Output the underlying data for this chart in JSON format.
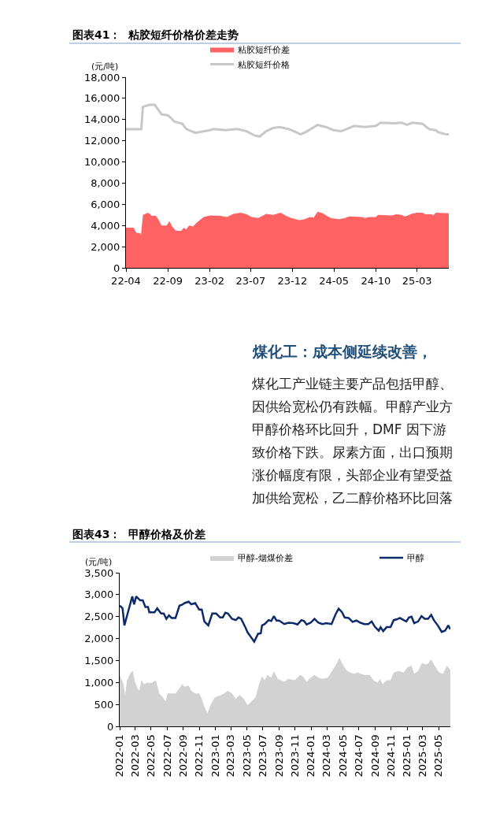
{
  "chart_data": [
    {
      "type": "area",
      "title": "图表41：  粘胶短纤价格价差走势",
      "ylabel": "(元/吨)",
      "xlim": [
        "2022-04-01",
        "2025-06-25"
      ],
      "xticks": [
        {
          "value": "2022-04",
          "label": "22-04"
        },
        {
          "value": "2022-09",
          "label": "22-09"
        },
        {
          "value": "2023-02",
          "label": "23-02"
        },
        {
          "value": "2023-07",
          "label": "23-07"
        },
        {
          "value": "2023-12",
          "label": "23-12"
        },
        {
          "value": "2024-05",
          "label": "24-05"
        },
        {
          "value": "2024-10",
          "label": "24-10"
        },
        {
          "value": "2025-03",
          "label": "25-03"
        }
      ],
      "ylim": [
        0,
        18000
      ],
      "yticks": [
        0,
        {
          "value": 2000,
          "label": "2,000"
        },
        {
          "value": 4000,
          "label": "4,000"
        },
        {
          "value": 6000,
          "label": "6,000"
        },
        {
          "value": 8000,
          "label": "8,000"
        },
        {
          "value": 10000,
          "label": "10,000"
        },
        {
          "value": 12000,
          "label": "12,000"
        },
        {
          "value": 14000,
          "label": "14,000"
        },
        {
          "value": 16000,
          "label": "16,000"
        },
        {
          "value": 18000,
          "label": "18,000"
        }
      ],
      "legend": "top",
      "series": [
        {
          "name": "粘胶短纤价差",
          "type": "area",
          "color": "#ff6262",
          "x": [
            "2022-04-01",
            "2022-04-29",
            "2022-05-09",
            "2022-05-23",
            "2022-05-26",
            "2022-06-02",
            "2022-06-21",
            "2022-07-05",
            "2022-07-20",
            "2022-07-30",
            "2022-08-09",
            "2022-08-28",
            "2022-09-07",
            "2022-09-17",
            "2022-10-01",
            "2022-10-20",
            "2022-10-30",
            "2022-11-07",
            "2022-11-18",
            "2022-12-02",
            "2022-12-17",
            "2023-01-10",
            "2023-02-03",
            "2023-03-12",
            "2023-04-05",
            "2023-04-29",
            "2023-05-27",
            "2023-06-16",
            "2023-07-05",
            "2023-07-29",
            "2023-08-27",
            "2023-09-21",
            "2023-10-19",
            "2023-11-08",
            "2023-11-27",
            "2023-12-26",
            "2024-01-14",
            "2024-02-03",
            "2024-02-17",
            "2024-03-02",
            "2024-03-21",
            "2024-04-05",
            "2024-04-19",
            "2024-05-18",
            "2024-06-11",
            "2024-06-25",
            "2024-08-13",
            "2024-08-22",
            "2024-09-06",
            "2024-10-01",
            "2024-10-09",
            "2024-11-27",
            "2024-12-16",
            "2025-01-04",
            "2025-01-14",
            "2025-01-23",
            "2025-02-08",
            "2025-02-27",
            "2025-03-21",
            "2025-03-31",
            "2025-04-24",
            "2025-04-29",
            "2025-05-08",
            "2025-06-25"
          ],
          "values": [
            3800,
            3800,
            3300,
            3300,
            3100,
            5000,
            5200,
            4900,
            4900,
            4500,
            4000,
            4000,
            4400,
            3900,
            3500,
            3500,
            3800,
            3600,
            4000,
            3900,
            4300,
            4800,
            4950,
            4900,
            4800,
            5100,
            5200,
            5050,
            4800,
            4700,
            5100,
            5000,
            5200,
            4900,
            4700,
            4500,
            4600,
            4800,
            4750,
            5300,
            5150,
            4900,
            4700,
            4600,
            4700,
            4850,
            4800,
            4700,
            4800,
            4800,
            5000,
            4950,
            5050,
            5000,
            4850,
            4900,
            5100,
            5200,
            5200,
            5050,
            5050,
            4950,
            5200,
            5150
          ]
        },
        {
          "name": "粘胶短纤价格",
          "type": "line",
          "color": "#c8c8c8",
          "x": [
            "2022-04-01",
            "2022-05-27",
            "2022-06-02",
            "2022-06-26",
            "2022-07-15",
            "2022-08-09",
            "2022-09-02",
            "2022-09-26",
            "2022-10-24",
            "2022-11-08",
            "2022-12-11",
            "2023-01-14",
            "2023-02-03",
            "2023-02-13",
            "2023-03-31",
            "2023-05-13",
            "2023-06-16",
            "2023-07-15",
            "2023-08-03",
            "2023-08-27",
            "2023-09-21",
            "2023-10-15",
            "2023-11-18",
            "2023-12-07",
            "2023-12-31",
            "2024-01-24",
            "2024-03-02",
            "2024-04-01",
            "2024-04-29",
            "2024-05-27",
            "2024-06-16",
            "2024-07-14",
            "2024-08-22",
            "2024-10-01",
            "2024-10-19",
            "2024-12-06",
            "2025-01-04",
            "2025-01-23",
            "2025-02-12",
            "2025-03-21",
            "2025-04-14",
            "2025-05-08",
            "2025-05-18",
            "2025-06-16",
            "2025-06-25"
          ],
          "values": [
            13100,
            13100,
            15200,
            15400,
            15400,
            14500,
            14400,
            13800,
            13600,
            13100,
            12750,
            12900,
            13000,
            13100,
            13000,
            13100,
            12900,
            12500,
            12400,
            12900,
            13200,
            13300,
            13100,
            12900,
            12600,
            12900,
            13500,
            13300,
            13000,
            12900,
            13100,
            13400,
            13300,
            13400,
            13700,
            13650,
            13700,
            13500,
            13700,
            13600,
            13100,
            13000,
            12800,
            12600,
            12600
          ]
        }
      ]
    },
    {
      "type": "other",
      "title": "煤化工：成本侧延续改善，",
      "annotations": [
        "煤化工产业链主要产品包括甲醇、",
        "因供给宽松仍有跌幅。甲醇产业方",
        "甲醇价格环比回升，DMF 因下游",
        "致价格下跌。尿素方面，出口预期",
        "涨价幅度有限，头部企业有望受益",
        "加供给宽松，乙二醇价格环比回落"
      ]
    },
    {
      "type": "area",
      "title": "图表43：  甲醇价格及价差",
      "ylabel": "(元/吨)",
      "xlim": [
        "2022-01-01",
        "2025-06-15"
      ],
      "xticks": [
        "2022-01",
        "2022-03",
        "2022-05",
        "2022-07",
        "2022-09",
        "2022-11",
        "2023-01",
        "2023-03",
        "2023-05",
        "2023-07",
        "2023-09",
        "2023-11",
        "2024-01",
        "2024-03",
        "2024-05",
        "2024-07",
        "2024-09",
        "2024-11",
        "2025-01",
        "2025-03",
        "2025-05"
      ],
      "ylim": [
        0,
        3500
      ],
      "yticks": [
        0,
        500,
        {
          "value": 1000,
          "label": "1,000"
        },
        {
          "value": 1500,
          "label": "1,500"
        },
        {
          "value": 2000,
          "label": "2,000"
        },
        {
          "value": 2500,
          "label": "2,500"
        },
        {
          "value": 3000,
          "label": "3,000"
        },
        {
          "value": 3500,
          "label": "3,500"
        }
      ],
      "legend": "top",
      "series": [
        {
          "name": "甲醇-烟煤价差",
          "type": "area",
          "color": "#d2d2d2",
          "x": [
            "2022-01-01",
            "2022-01-14",
            "2022-01-22",
            "2022-01-29",
            "2022-02-13",
            "2022-02-20",
            "2022-02-28",
            "2022-03-10",
            "2022-03-17",
            "2022-03-25",
            "2022-04-04",
            "2022-04-14",
            "2022-05-04",
            "2022-05-19",
            "2022-06-01",
            "2022-06-15",
            "2022-06-25",
            "2022-07-03",
            "2022-07-18",
            "2022-08-02",
            "2022-08-17",
            "2022-08-27",
            "2022-09-06",
            "2022-09-21",
            "2022-10-01",
            "2022-10-16",
            "2022-10-31",
            "2022-11-10",
            "2022-11-20",
            "2022-12-02",
            "2022-12-15",
            "2022-12-30",
            "2023-01-14",
            "2023-01-24",
            "2023-02-03",
            "2023-02-18",
            "2023-03-05",
            "2023-03-20",
            "2023-04-04",
            "2023-04-19",
            "2023-05-04",
            "2023-05-19",
            "2023-06-03",
            "2023-06-18",
            "2023-06-28",
            "2023-07-08",
            "2023-07-18",
            "2023-08-02",
            "2023-08-12",
            "2023-08-27",
            "2023-09-21",
            "2023-10-06",
            "2023-10-31",
            "2023-11-20",
            "2023-11-30",
            "2023-12-15",
            "2023-12-30",
            "2024-01-14",
            "2024-01-29",
            "2024-02-13",
            "2024-03-04",
            "2024-03-24",
            "2024-04-08",
            "2024-04-18",
            "2024-04-28",
            "2024-05-13",
            "2024-05-28",
            "2024-06-12",
            "2024-06-27",
            "2024-07-07",
            "2024-07-22",
            "2024-08-11",
            "2024-08-26",
            "2024-09-10",
            "2024-09-20",
            "2024-09-30",
            "2024-10-15",
            "2024-10-30",
            "2024-11-11",
            "2024-11-29",
            "2024-12-19",
            "2025-01-03",
            "2025-01-18",
            "2025-01-28",
            "2025-02-12",
            "2025-02-27",
            "2025-03-14",
            "2025-03-24",
            "2025-04-03",
            "2025-04-13",
            "2025-05-03",
            "2025-05-18",
            "2025-06-02",
            "2025-06-15"
          ],
          "values": [
            1170,
            990,
            720,
            1050,
            1230,
            1260,
            1020,
            870,
            810,
            1050,
            960,
            990,
            990,
            1050,
            750,
            660,
            570,
            750,
            750,
            750,
            870,
            960,
            900,
            930,
            810,
            750,
            750,
            630,
            450,
            300,
            510,
            660,
            690,
            720,
            750,
            810,
            750,
            630,
            720,
            630,
            480,
            570,
            660,
            990,
            1140,
            1050,
            1170,
            1110,
            1260,
            1080,
            1020,
            1080,
            1050,
            1170,
            1140,
            1020,
            1110,
            1170,
            1110,
            1080,
            1110,
            1290,
            1440,
            1560,
            1440,
            1290,
            1230,
            1200,
            1230,
            1200,
            1170,
            1170,
            1050,
            990,
            1080,
            960,
            1050,
            1050,
            1230,
            1260,
            1230,
            1350,
            1380,
            1200,
            1260,
            1440,
            1410,
            1440,
            1530,
            1410,
            1230,
            1200,
            1380,
            1290
          ]
        },
        {
          "name": "甲醇",
          "type": "line",
          "color": "#0d2a6b",
          "x": [
            "2022-01-01",
            "2022-01-12",
            "2022-01-19",
            "2022-02-03",
            "2022-02-18",
            "2022-02-25",
            "2022-03-05",
            "2022-03-20",
            "2022-03-30",
            "2022-04-09",
            "2022-04-19",
            "2022-04-24",
            "2022-05-14",
            "2022-05-24",
            "2022-06-08",
            "2022-06-18",
            "2022-06-28",
            "2022-07-08",
            "2022-07-18",
            "2022-08-02",
            "2022-08-17",
            "2022-08-27",
            "2022-09-06",
            "2022-09-21",
            "2022-10-01",
            "2022-10-16",
            "2022-10-31",
            "2022-11-10",
            "2022-11-20",
            "2022-12-05",
            "2022-12-20",
            "2023-01-04",
            "2023-01-19",
            "2023-01-29",
            "2023-02-08",
            "2023-02-18",
            "2023-03-05",
            "2023-03-20",
            "2023-03-30",
            "2023-04-09",
            "2023-04-24",
            "2023-05-04",
            "2023-05-17",
            "2023-05-29",
            "2023-06-13",
            "2023-06-23",
            "2023-06-28",
            "2023-07-08",
            "2023-07-23",
            "2023-08-02",
            "2023-08-12",
            "2023-08-22",
            "2023-09-01",
            "2023-09-21",
            "2023-10-06",
            "2023-10-26",
            "2023-11-10",
            "2023-11-25",
            "2023-12-05",
            "2023-12-15",
            "2023-12-30",
            "2024-01-14",
            "2024-01-29",
            "2024-02-13",
            "2024-02-28",
            "2024-03-19",
            "2024-04-03",
            "2024-04-15",
            "2024-04-28",
            "2024-05-08",
            "2024-05-23",
            "2024-06-07",
            "2024-06-22",
            "2024-07-07",
            "2024-07-22",
            "2024-08-06",
            "2024-08-19",
            "2024-08-31",
            "2024-09-15",
            "2024-09-22",
            "2024-10-02",
            "2024-10-15",
            "2024-10-30",
            "2024-11-11",
            "2024-11-24",
            "2024-12-04",
            "2024-12-19",
            "2024-12-29",
            "2025-01-08",
            "2025-01-18",
            "2025-01-28",
            "2025-02-12",
            "2025-02-25",
            "2025-03-09",
            "2025-03-22",
            "2025-04-03",
            "2025-04-13",
            "2025-04-28",
            "2025-05-13",
            "2025-05-26",
            "2025-06-07",
            "2025-06-15"
          ],
          "values": [
            2750,
            2690,
            2300,
            2630,
            2960,
            2780,
            2960,
            2870,
            2870,
            2720,
            2720,
            2600,
            2600,
            2690,
            2570,
            2570,
            2450,
            2530,
            2470,
            2470,
            2750,
            2770,
            2810,
            2840,
            2780,
            2810,
            2660,
            2660,
            2390,
            2300,
            2570,
            2570,
            2480,
            2480,
            2590,
            2570,
            2450,
            2420,
            2480,
            2450,
            2270,
            2140,
            2030,
            1930,
            2110,
            2120,
            2300,
            2330,
            2420,
            2400,
            2510,
            2410,
            2410,
            2330,
            2360,
            2350,
            2320,
            2420,
            2400,
            2320,
            2360,
            2450,
            2360,
            2330,
            2350,
            2330,
            2550,
            2680,
            2600,
            2480,
            2470,
            2380,
            2410,
            2360,
            2330,
            2330,
            2390,
            2270,
            2180,
            2260,
            2170,
            2260,
            2260,
            2420,
            2440,
            2470,
            2420,
            2390,
            2480,
            2500,
            2350,
            2390,
            2510,
            2450,
            2450,
            2540,
            2420,
            2300,
            2150,
            2180,
            2300,
            2210
          ]
        }
      ]
    }
  ]
}
